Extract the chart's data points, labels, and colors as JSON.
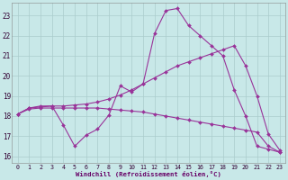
{
  "xlabel": "Windchill (Refroidissement éolien,°C)",
  "bg_color": "#c8e8e8",
  "grid_color": "#b0d8d8",
  "line_color": "#993399",
  "xlim_min": -0.5,
  "xlim_max": 23.5,
  "ylim_min": 15.65,
  "ylim_max": 23.65,
  "xticks": [
    0,
    1,
    2,
    3,
    4,
    5,
    6,
    7,
    8,
    9,
    10,
    11,
    12,
    13,
    14,
    15,
    16,
    17,
    18,
    19,
    20,
    21,
    22,
    23
  ],
  "yticks": [
    16,
    17,
    18,
    19,
    20,
    21,
    22,
    23
  ],
  "line1_x": [
    0,
    1,
    2,
    3,
    4,
    5,
    6,
    7,
    8,
    9,
    10,
    11,
    12,
    13,
    14,
    15,
    16,
    17,
    18,
    19,
    20,
    21,
    22,
    23
  ],
  "line1_y": [
    18.1,
    18.4,
    18.45,
    18.5,
    18.5,
    18.55,
    18.6,
    18.7,
    18.85,
    19.05,
    19.3,
    19.6,
    19.9,
    20.2,
    20.5,
    20.7,
    20.9,
    21.1,
    21.3,
    21.5,
    20.5,
    19.0,
    17.1,
    16.3
  ],
  "line2_x": [
    0,
    1,
    2,
    3,
    4,
    5,
    6,
    7,
    8,
    9,
    10,
    11,
    12,
    13,
    14,
    15,
    16,
    17,
    18,
    19,
    20,
    21,
    22,
    23
  ],
  "line2_y": [
    18.1,
    18.4,
    18.5,
    18.5,
    17.55,
    16.5,
    17.05,
    17.35,
    18.05,
    19.5,
    19.2,
    19.6,
    22.1,
    23.25,
    23.35,
    22.5,
    22.0,
    21.5,
    21.0,
    19.3,
    18.0,
    16.5,
    16.35,
    16.2
  ],
  "line3_x": [
    0,
    1,
    2,
    3,
    4,
    5,
    6,
    7,
    8,
    9,
    10,
    11,
    12,
    13,
    14,
    15,
    16,
    17,
    18,
    19,
    20,
    21,
    22,
    23
  ],
  "line3_y": [
    18.1,
    18.35,
    18.4,
    18.4,
    18.4,
    18.4,
    18.4,
    18.4,
    18.35,
    18.3,
    18.25,
    18.2,
    18.1,
    18.0,
    17.9,
    17.8,
    17.7,
    17.6,
    17.5,
    17.4,
    17.3,
    17.2,
    16.5,
    16.2
  ]
}
